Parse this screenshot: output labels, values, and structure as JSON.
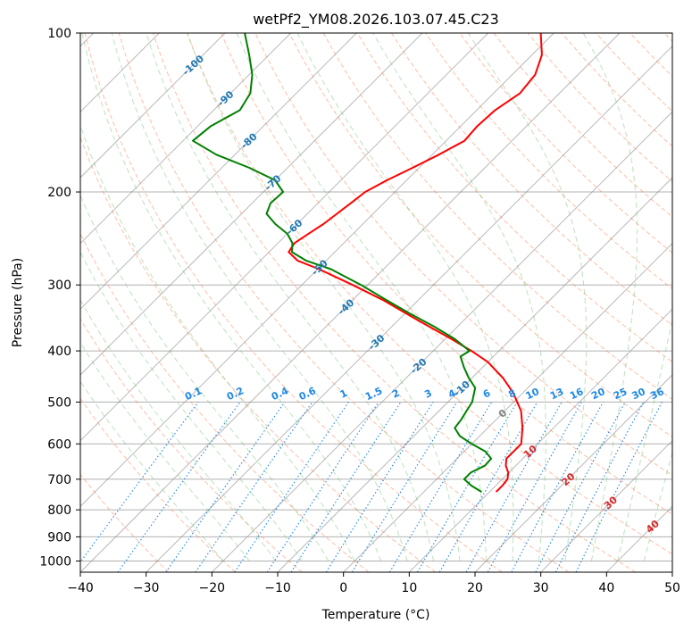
{
  "chart_data": {
    "type": "skew-t",
    "title": "wetPf2_YM08.2026.103.07.45.C23",
    "xlabel": "Temperature (°C)",
    "ylabel": "Pressure (hPa)",
    "xlim": [
      -40,
      50
    ],
    "ylim": [
      1050,
      100
    ],
    "x_ticks": [
      -40,
      -30,
      -20,
      -10,
      0,
      10,
      20,
      30,
      40,
      50
    ],
    "y_ticks": [
      1000,
      900,
      800,
      700,
      600,
      500,
      400,
      300,
      200,
      100
    ],
    "grid": true,
    "colors": {
      "temperature": "#ff0000",
      "dewpoint": "#008000",
      "isotherm": "#808080",
      "dry_adiabat": "#ff7f50",
      "moist_adiabat": "#6bbf6b",
      "mixing_ratio": "#1e88e5",
      "isotherm_label": "#1f77b4",
      "warm_label": "#d62728"
    },
    "isotherm_labels": [
      "-100",
      "-90",
      "-80",
      "-70",
      "-60",
      "-50",
      "-40",
      "-30",
      "-20",
      "-10",
      "0",
      "10",
      "20",
      "30",
      "40"
    ],
    "isotherm_label_values": [
      -100,
      -90,
      -80,
      -70,
      -60,
      -50,
      -40,
      -30,
      -20,
      -10,
      0,
      10,
      20,
      30,
      40
    ],
    "mixing_ratio_labels": [
      "0.1",
      "0.2",
      "0.4",
      "0.6",
      "1",
      "1.5",
      "2",
      "3",
      "4",
      "6",
      "8",
      "10",
      "13",
      "16",
      "20",
      "25",
      "30",
      "36"
    ],
    "mixing_ratio_values": [
      0.1,
      0.2,
      0.4,
      0.6,
      1,
      1.5,
      2,
      3,
      4,
      6,
      8,
      10,
      13,
      16,
      20,
      25,
      30,
      36
    ],
    "series": [
      {
        "name": "temperature",
        "pressure": [
          740,
          720,
          700,
          680,
          660,
          640,
          600,
          560,
          520,
          480,
          450,
          420,
          400,
          380,
          350,
          320,
          300,
          280,
          270,
          260,
          250,
          240,
          230,
          220,
          210,
          200,
          190,
          180,
          170,
          160,
          150,
          140,
          130,
          120,
          110,
          100
        ],
        "temperature": [
          11.0,
          11.0,
          10.8,
          9.9,
          8.5,
          7.5,
          7.5,
          5.3,
          2.5,
          -1.5,
          -5.3,
          -10.0,
          -14.2,
          -19.0,
          -27.0,
          -35.5,
          -42.3,
          -49.8,
          -54.3,
          -57.0,
          -57.5,
          -56.8,
          -56.0,
          -55.5,
          -55.0,
          -54.5,
          -53.0,
          -51.0,
          -49.0,
          -47.2,
          -47.5,
          -47.2,
          -46.0,
          -46.5,
          -48.5,
          -52.0
        ]
      },
      {
        "name": "dewpoint",
        "pressure": [
          740,
          720,
          700,
          680,
          660,
          640,
          620,
          600,
          580,
          560,
          540,
          520,
          500,
          470,
          450,
          430,
          410,
          400,
          380,
          360,
          340,
          320,
          300,
          280,
          270,
          260,
          250,
          240,
          230,
          220,
          210,
          200,
          190,
          180,
          170,
          160,
          150,
          140,
          130,
          120,
          110,
          100
        ],
        "temperature": [
          8.8,
          6.3,
          4.2,
          4.2,
          5.3,
          5.2,
          3.2,
          0.0,
          -3.0,
          -5.0,
          -5.3,
          -5.8,
          -6.3,
          -8.0,
          -10.5,
          -12.8,
          -15.0,
          -14.5,
          -18.5,
          -23.5,
          -29.2,
          -35.0,
          -41.0,
          -48.0,
          -53.0,
          -56.5,
          -57.8,
          -60.0,
          -63.3,
          -66.2,
          -67.2,
          -67.0,
          -70.0,
          -75.8,
          -82.8,
          -88.5,
          -88.0,
          -86.0,
          -87.0,
          -89.5,
          -93.0,
          -97.0
        ]
      }
    ]
  }
}
